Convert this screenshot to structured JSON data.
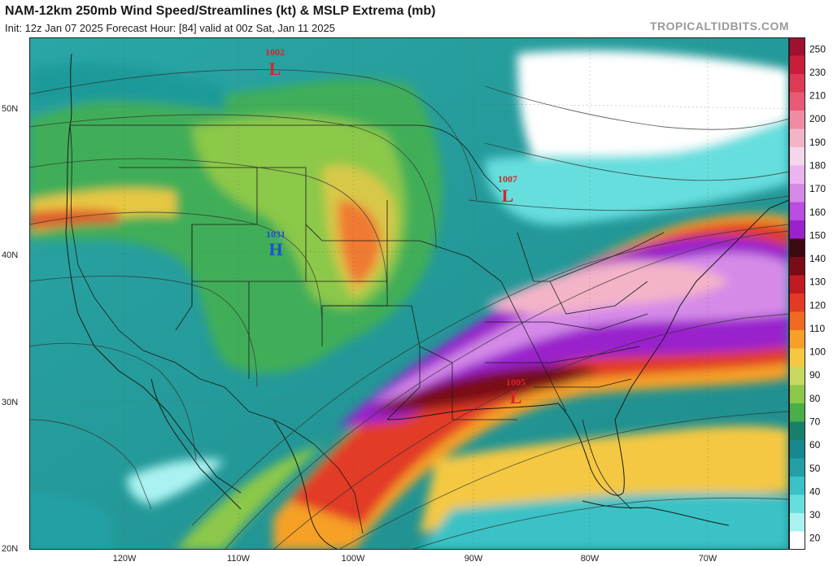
{
  "header": {
    "title": "NAM-12km 250mb Wind Speed/Streamlines (kt) & MSLP Extrema (mb)",
    "subtitle": "Init: 12z Jan 07 2025   Forecast Hour: [84]   valid at 00z Sat, Jan 11 2025",
    "site": "TROPICALTIDBITS.COM"
  },
  "lat_labels": [
    "50N",
    "40N",
    "30N",
    "20N"
  ],
  "lon_labels": [
    "120W",
    "110W",
    "100W",
    "90W",
    "80W",
    "70W"
  ],
  "pressure_centers": [
    {
      "type": "L",
      "value": "1002",
      "color": "#d8232a"
    },
    {
      "type": "L",
      "value": "1007",
      "color": "#d8232a"
    },
    {
      "type": "H",
      "value": "1031",
      "color": "#1f4fd6"
    },
    {
      "type": "L",
      "value": "1005",
      "color": "#d8232a"
    }
  ],
  "colorbar": {
    "labels": [
      "250",
      "230",
      "210",
      "200",
      "190",
      "180",
      "170",
      "160",
      "150",
      "140",
      "130",
      "120",
      "110",
      "100",
      "90",
      "80",
      "70",
      "60",
      "50",
      "40",
      "30",
      "20"
    ],
    "colors": [
      "#a0102f",
      "#c81e3c",
      "#dc3a55",
      "#e85a76",
      "#f08ca2",
      "#f4b4c8",
      "#f6d6ea",
      "#e9b4f0",
      "#d58ae8",
      "#b84fe0",
      "#9a22cc",
      "#3a0a10",
      "#7a0a16",
      "#c01a22",
      "#e23a26",
      "#f06a22",
      "#f6a028",
      "#f4c842",
      "#c8d860",
      "#8cc84a",
      "#4aae4a",
      "#18806a",
      "#16888e",
      "#22a0a6",
      "#3ac2c6",
      "#66dede",
      "#aaf2f2",
      "#ffffff"
    ]
  }
}
